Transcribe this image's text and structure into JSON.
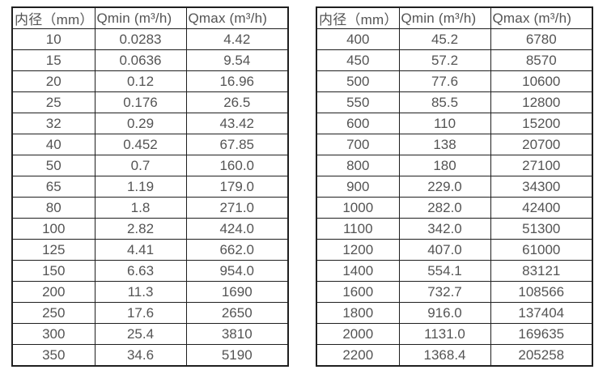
{
  "colors": {
    "border": "#1f1f1f",
    "text": "#545454",
    "background": "#ffffff"
  },
  "tables": [
    {
      "name": "small-diameter-flow-table",
      "headers": [
        "内径（mm）",
        "Qmin (m³/h)",
        "Qmax (m³/h)"
      ],
      "rows": [
        [
          "10",
          "0.0283",
          "4.42"
        ],
        [
          "15",
          "0.0636",
          "9.54"
        ],
        [
          "20",
          "0.12",
          "16.96"
        ],
        [
          "25",
          "0.176",
          "26.5"
        ],
        [
          "32",
          "0.29",
          "43.42"
        ],
        [
          "40",
          "0.452",
          "67.85"
        ],
        [
          "50",
          "0.7",
          "160.0"
        ],
        [
          "65",
          "1.19",
          "179.0"
        ],
        [
          "80",
          "1.8",
          "271.0"
        ],
        [
          "100",
          "2.82",
          "424.0"
        ],
        [
          "125",
          "4.41",
          "662.0"
        ],
        [
          "150",
          "6.63",
          "954.0"
        ],
        [
          "200",
          "11.3",
          "1690"
        ],
        [
          "250",
          "17.6",
          "2650"
        ],
        [
          "300",
          "25.4",
          "3810"
        ],
        [
          "350",
          "34.6",
          "5190"
        ]
      ]
    },
    {
      "name": "large-diameter-flow-table",
      "headers": [
        "内径（mm）",
        "Qmin (m³/h)",
        "Qmax (m³/h)"
      ],
      "rows": [
        [
          "400",
          "45.2",
          "6780"
        ],
        [
          "450",
          "57.2",
          "8570"
        ],
        [
          "500",
          "77.6",
          "10600"
        ],
        [
          "550",
          "85.5",
          "12800"
        ],
        [
          "600",
          "110",
          "15200"
        ],
        [
          "700",
          "138",
          "20700"
        ],
        [
          "800",
          "180",
          "27100"
        ],
        [
          "900",
          "229.0",
          "34300"
        ],
        [
          "1000",
          "282.0",
          "42400"
        ],
        [
          "1100",
          "342.0",
          "51300"
        ],
        [
          "1200",
          "407.0",
          "61000"
        ],
        [
          "1400",
          "554.1",
          "83121"
        ],
        [
          "1600",
          "732.7",
          "108566"
        ],
        [
          "1800",
          "916.0",
          "137404"
        ],
        [
          "2000",
          "1131.0",
          "169635"
        ],
        [
          "2200",
          "1368.4",
          "205258"
        ]
      ]
    }
  ],
  "chart_data": [
    {
      "type": "table",
      "title": "",
      "columns": [
        "内径（mm）",
        "Qmin (m³/h)",
        "Qmax (m³/h)"
      ],
      "rows": [
        [
          10,
          0.0283,
          4.42
        ],
        [
          15,
          0.0636,
          9.54
        ],
        [
          20,
          0.12,
          16.96
        ],
        [
          25,
          0.176,
          26.5
        ],
        [
          32,
          0.29,
          43.42
        ],
        [
          40,
          0.452,
          67.85
        ],
        [
          50,
          0.7,
          160.0
        ],
        [
          65,
          1.19,
          179.0
        ],
        [
          80,
          1.8,
          271.0
        ],
        [
          100,
          2.82,
          424.0
        ],
        [
          125,
          4.41,
          662.0
        ],
        [
          150,
          6.63,
          954.0
        ],
        [
          200,
          11.3,
          1690
        ],
        [
          250,
          17.6,
          2650
        ],
        [
          300,
          25.4,
          3810
        ],
        [
          350,
          34.6,
          5190
        ]
      ]
    },
    {
      "type": "table",
      "title": "",
      "columns": [
        "内径（mm）",
        "Qmin (m³/h)",
        "Qmax (m³/h)"
      ],
      "rows": [
        [
          400,
          45.2,
          6780
        ],
        [
          450,
          57.2,
          8570
        ],
        [
          500,
          77.6,
          10600
        ],
        [
          550,
          85.5,
          12800
        ],
        [
          600,
          110,
          15200
        ],
        [
          700,
          138,
          20700
        ],
        [
          800,
          180,
          27100
        ],
        [
          900,
          229.0,
          34300
        ],
        [
          1000,
          282.0,
          42400
        ],
        [
          1100,
          342.0,
          51300
        ],
        [
          1200,
          407.0,
          61000
        ],
        [
          1400,
          554.1,
          83121
        ],
        [
          1600,
          732.7,
          108566
        ],
        [
          1800,
          916.0,
          137404
        ],
        [
          2000,
          1131.0,
          169635
        ],
        [
          2200,
          1368.4,
          205258
        ]
      ]
    }
  ]
}
